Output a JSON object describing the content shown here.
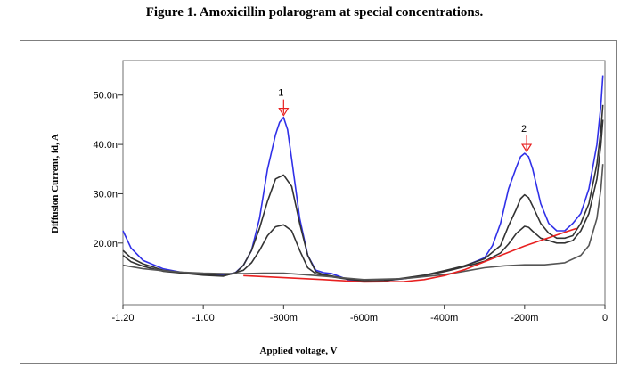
{
  "figure": {
    "title": "Figure 1. Amoxicillin polarogram at special concentrations."
  },
  "chart_data": {
    "type": "line",
    "title": "Figure 1. Amoxicillin polarogram at special concentrations.",
    "xlabel": "Applied voltage, V",
    "ylabel": "Diffusion Current, id, A",
    "xlim": [
      -1.2,
      0
    ],
    "ylim": [
      7.5,
      57
    ],
    "x_ticks": [
      {
        "value": -1.2,
        "label": "-1.20"
      },
      {
        "value": -1.0,
        "label": "-1.00"
      },
      {
        "value": -0.8,
        "label": "-800m"
      },
      {
        "value": -0.6,
        "label": "-600m"
      },
      {
        "value": -0.4,
        "label": "-400m"
      },
      {
        "value": -0.2,
        "label": "-200m"
      },
      {
        "value": 0,
        "label": "0"
      }
    ],
    "y_ticks": [
      {
        "value": 20,
        "label": "20.0n"
      },
      {
        "value": 30,
        "label": "30.0n"
      },
      {
        "value": 40,
        "label": "40.0n"
      },
      {
        "value": 50,
        "label": "50.0n"
      }
    ],
    "grid": false,
    "legend": "none",
    "annotations": [
      {
        "label": "1",
        "x": -0.8,
        "y": 45.5
      },
      {
        "label": "2",
        "x": -0.195,
        "y": 38.2
      }
    ],
    "series": [
      {
        "color": "#3030e8",
        "x": [
          -1.2,
          -1.18,
          -1.15,
          -1.1,
          -1.05,
          -1.0,
          -0.95,
          -0.92,
          -0.9,
          -0.88,
          -0.86,
          -0.84,
          -0.82,
          -0.81,
          -0.8,
          -0.79,
          -0.78,
          -0.76,
          -0.74,
          -0.72,
          -0.7,
          -0.68,
          -0.66,
          -0.64,
          -0.62,
          -0.6,
          -0.55,
          -0.5,
          -0.45,
          -0.4,
          -0.35,
          -0.3,
          -0.28,
          -0.26,
          -0.24,
          -0.22,
          -0.21,
          -0.2,
          -0.19,
          -0.18,
          -0.16,
          -0.14,
          -0.12,
          -0.1,
          -0.08,
          -0.06,
          -0.04,
          -0.02,
          -0.01,
          -0.005
        ],
        "y": [
          22.5,
          19.0,
          16.5,
          14.8,
          14.0,
          13.6,
          13.5,
          14.0,
          15.5,
          18.5,
          25.0,
          35.0,
          42.0,
          44.5,
          45.5,
          43.0,
          37.0,
          25.0,
          17.5,
          14.5,
          14.0,
          13.8,
          13.2,
          12.6,
          12.3,
          12.2,
          12.4,
          12.8,
          13.4,
          14.3,
          15.3,
          17.0,
          19.5,
          24.0,
          31.0,
          35.5,
          37.5,
          38.2,
          37.5,
          35.0,
          28.0,
          24.0,
          22.5,
          22.5,
          24.0,
          26.0,
          31.0,
          40.0,
          48.0,
          54.0
        ]
      },
      {
        "color": "#333333",
        "x": [
          -1.2,
          -1.18,
          -1.15,
          -1.1,
          -1.05,
          -1.0,
          -0.95,
          -0.92,
          -0.9,
          -0.88,
          -0.86,
          -0.84,
          -0.82,
          -0.8,
          -0.78,
          -0.76,
          -0.74,
          -0.72,
          -0.7,
          -0.65,
          -0.6,
          -0.55,
          -0.5,
          -0.45,
          -0.4,
          -0.35,
          -0.3,
          -0.26,
          -0.24,
          -0.22,
          -0.21,
          -0.2,
          -0.19,
          -0.18,
          -0.16,
          -0.14,
          -0.12,
          -0.1,
          -0.08,
          -0.06,
          -0.04,
          -0.02,
          -0.01,
          -0.005
        ],
        "y": [
          18.5,
          17.0,
          15.8,
          14.5,
          14.0,
          13.6,
          13.4,
          13.9,
          15.5,
          18.5,
          23.0,
          28.5,
          33.0,
          33.8,
          31.5,
          24.0,
          17.5,
          14.2,
          13.6,
          12.9,
          12.3,
          12.4,
          12.9,
          13.5,
          14.4,
          15.4,
          16.8,
          19.5,
          23.5,
          27.0,
          29.0,
          29.8,
          29.2,
          27.5,
          24.0,
          22.0,
          21.0,
          21.0,
          21.5,
          24.0,
          28.0,
          36.0,
          43.0,
          48.0
        ]
      },
      {
        "color": "#333333",
        "x": [
          -1.2,
          -1.18,
          -1.15,
          -1.1,
          -1.05,
          -1.0,
          -0.95,
          -0.9,
          -0.88,
          -0.86,
          -0.84,
          -0.82,
          -0.8,
          -0.78,
          -0.76,
          -0.74,
          -0.72,
          -0.7,
          -0.65,
          -0.6,
          -0.55,
          -0.5,
          -0.45,
          -0.4,
          -0.35,
          -0.3,
          -0.26,
          -0.24,
          -0.22,
          -0.2,
          -0.19,
          -0.18,
          -0.16,
          -0.14,
          -0.12,
          -0.1,
          -0.08,
          -0.06,
          -0.04,
          -0.02,
          -0.01,
          -0.005
        ],
        "y": [
          17.5,
          16.2,
          15.3,
          14.3,
          13.9,
          13.5,
          13.3,
          14.5,
          16.0,
          18.5,
          21.5,
          23.3,
          23.7,
          22.5,
          18.5,
          15.0,
          13.8,
          13.4,
          12.8,
          12.3,
          12.4,
          12.8,
          13.4,
          14.2,
          15.2,
          16.3,
          18.0,
          19.8,
          22.0,
          23.4,
          23.2,
          22.4,
          21.0,
          20.5,
          20.0,
          20.0,
          20.5,
          22.5,
          26.0,
          33.0,
          40.0,
          45.0
        ]
      },
      {
        "color": "#555555",
        "x": [
          -1.2,
          -1.15,
          -1.1,
          -1.05,
          -1.0,
          -0.95,
          -0.9,
          -0.85,
          -0.8,
          -0.75,
          -0.7,
          -0.6,
          -0.5,
          -0.4,
          -0.35,
          -0.3,
          -0.25,
          -0.2,
          -0.15,
          -0.1,
          -0.06,
          -0.04,
          -0.02,
          -0.01,
          -0.005
        ],
        "y": [
          15.5,
          14.8,
          14.4,
          14.1,
          13.9,
          13.8,
          13.8,
          13.9,
          13.9,
          13.6,
          13.3,
          12.6,
          12.8,
          13.6,
          14.3,
          15.0,
          15.4,
          15.6,
          15.6,
          16.0,
          17.5,
          19.5,
          25.0,
          31.0,
          36.0
        ]
      },
      {
        "color": "#e82020",
        "x": [
          -0.9,
          -0.8,
          -0.7,
          -0.6,
          -0.5,
          -0.45,
          -0.4,
          -0.35,
          -0.3,
          -0.25,
          -0.2,
          -0.15,
          -0.1,
          -0.07
        ],
        "y": [
          13.4,
          13.0,
          12.6,
          12.1,
          12.2,
          12.6,
          13.4,
          14.6,
          16.2,
          17.8,
          19.4,
          20.8,
          22.2,
          23.0
        ]
      }
    ]
  }
}
